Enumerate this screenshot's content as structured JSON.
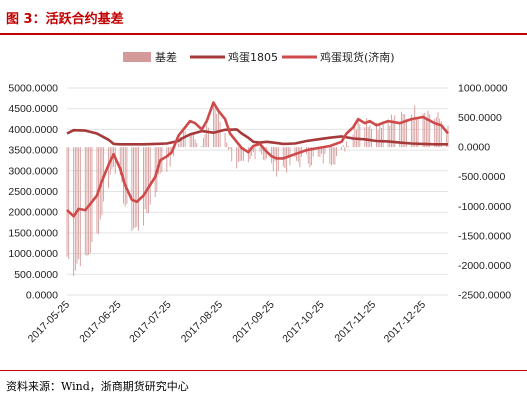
{
  "header": {
    "title": "图 3：活跃合约基差"
  },
  "footer": {
    "source": "资料来源：Wind，浙商期货研究中心"
  },
  "chart_data": {
    "type": "bar+line",
    "title": "",
    "legend": [
      "基差",
      "鸡蛋1805",
      "鸡蛋现货(济南)"
    ],
    "legend_position": "top",
    "colors": {
      "basis": "#d49a9a",
      "futures": "#a63a3a",
      "spot": "#cf4a4a"
    },
    "y_left": {
      "ticks": [
        "5000.0000",
        "4500.0000",
        "4000.0000",
        "3500.0000",
        "3000.0000",
        "2500.0000",
        "2000.0000",
        "1500.0000",
        "1000.0000",
        "500.0000",
        "0.0000"
      ],
      "range": [
        0,
        5000
      ]
    },
    "y_right": {
      "ticks": [
        "1000.0000",
        "500.0000",
        "0.0000",
        "-500.0000",
        "-1000.0000",
        "-1500.0000",
        "-2000.0000",
        "-2500.0000"
      ],
      "range": [
        -2500,
        1000
      ]
    },
    "x_ticks": [
      "2017-05-25",
      "2017-06-25",
      "2017-07-25",
      "2017-08-25",
      "2017-09-25",
      "2017-10-25",
      "2017-11-25",
      "2017-12-25"
    ],
    "x_range": [
      "2017-05-25",
      "2018-01-09"
    ],
    "series": [
      {
        "name": "鸡蛋1805",
        "axis": "left",
        "dates": [
          "2017-05-25",
          "2017-05-29",
          "2017-06-05",
          "2017-06-12",
          "2017-06-19",
          "2017-06-22",
          "2017-06-26",
          "2017-07-03",
          "2017-07-10",
          "2017-07-17",
          "2017-07-24",
          "2017-07-31",
          "2017-08-02",
          "2017-08-07",
          "2017-08-14",
          "2017-08-21",
          "2017-08-28",
          "2017-09-04",
          "2017-09-07",
          "2017-09-11",
          "2017-09-14",
          "2017-09-18",
          "2017-09-22",
          "2017-09-26",
          "2017-10-02",
          "2017-10-09",
          "2017-10-16",
          "2017-10-23",
          "2017-10-30",
          "2017-11-06",
          "2017-11-13",
          "2017-11-20",
          "2017-11-27",
          "2017-12-04",
          "2017-12-11",
          "2017-12-18",
          "2017-12-25",
          "2018-01-01",
          "2018-01-09"
        ],
        "values": [
          3900,
          3980,
          3970,
          3900,
          3750,
          3650,
          3640,
          3640,
          3640,
          3650,
          3660,
          3720,
          3780,
          3880,
          3960,
          3920,
          3990,
          4000,
          3900,
          3800,
          3700,
          3680,
          3700,
          3680,
          3650,
          3660,
          3720,
          3760,
          3800,
          3830,
          3780,
          3760,
          3720,
          3710,
          3680,
          3660,
          3650,
          3640,
          3640
        ]
      },
      {
        "name": "鸡蛋现货(济南)",
        "axis": "left",
        "dates": [
          "2017-05-25",
          "2017-05-29",
          "2017-06-01",
          "2017-06-05",
          "2017-06-08",
          "2017-06-12",
          "2017-06-15",
          "2017-06-19",
          "2017-06-22",
          "2017-06-26",
          "2017-06-29",
          "2017-07-03",
          "2017-07-06",
          "2017-07-10",
          "2017-07-13",
          "2017-07-17",
          "2017-07-20",
          "2017-07-24",
          "2017-07-27",
          "2017-07-31",
          "2017-08-03",
          "2017-08-07",
          "2017-08-10",
          "2017-08-14",
          "2017-08-17",
          "2017-08-21",
          "2017-08-24",
          "2017-08-28",
          "2017-08-31",
          "2017-09-04",
          "2017-09-07",
          "2017-09-11",
          "2017-09-14",
          "2017-09-18",
          "2017-09-21",
          "2017-09-25",
          "2017-09-28",
          "2017-10-02",
          "2017-10-09",
          "2017-10-16",
          "2017-10-23",
          "2017-10-30",
          "2017-11-06",
          "2017-11-09",
          "2017-11-13",
          "2017-11-16",
          "2017-11-20",
          "2017-11-23",
          "2017-11-27",
          "2017-12-04",
          "2017-12-11",
          "2017-12-18",
          "2017-12-25",
          "2018-01-01",
          "2018-01-05",
          "2018-01-09"
        ],
        "values": [
          2050,
          1900,
          2080,
          2050,
          2200,
          2400,
          2750,
          3150,
          3400,
          3050,
          2650,
          2300,
          2250,
          2400,
          2600,
          2850,
          3250,
          3350,
          3450,
          3850,
          4000,
          4200,
          4150,
          4000,
          4200,
          4650,
          4450,
          4250,
          3900,
          3700,
          3550,
          3450,
          3600,
          3650,
          3500,
          3350,
          3300,
          3300,
          3400,
          3500,
          3550,
          3600,
          3700,
          3900,
          4050,
          4250,
          4150,
          4200,
          4100,
          4200,
          4150,
          4250,
          4300,
          4150,
          4100,
          3900
        ]
      },
      {
        "name": "基差",
        "axis": "right",
        "type": "bar",
        "values_note": "daily basis, range approx -2100 to 550"
      }
    ]
  }
}
